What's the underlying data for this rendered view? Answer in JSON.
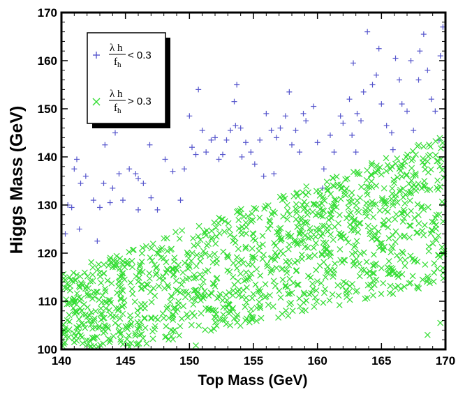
{
  "chart_data": {
    "type": "scatter",
    "title": "",
    "xlabel": "Top Mass (GeV)",
    "ylabel": "Higgs Mass (GeV)",
    "xlim": [
      140,
      170
    ],
    "ylim": [
      100,
      170
    ],
    "xticks": [
      "140",
      "145",
      "150",
      "155",
      "160",
      "165",
      "170"
    ],
    "yticks": [
      "100",
      "110",
      "120",
      "130",
      "140",
      "150",
      "160",
      "170"
    ],
    "grid": false,
    "legend_position": "top-left",
    "series": [
      {
        "name": "λ h / f_h < 0.3",
        "legend_numerator": "λ h",
        "legend_denominator": "f",
        "legend_subscript": "h",
        "legend_condition": "< 0.3",
        "marker": "plus",
        "color": "#5555cc",
        "points": [
          [
            140.3,
            124.0
          ],
          [
            140.5,
            130.0
          ],
          [
            140.8,
            129.5
          ],
          [
            141.0,
            137.5
          ],
          [
            141.2,
            139.5
          ],
          [
            141.5,
            134.5
          ],
          [
            141.4,
            125.0
          ],
          [
            141.9,
            136.0
          ],
          [
            142.5,
            131.0
          ],
          [
            142.8,
            122.5
          ],
          [
            143.4,
            142.5
          ],
          [
            143.3,
            134.5
          ],
          [
            143.0,
            129.5
          ],
          [
            144.0,
            133.5
          ],
          [
            144.2,
            145.0
          ],
          [
            144.5,
            136.5
          ],
          [
            144.8,
            131.0
          ],
          [
            145.2,
            147.5
          ],
          [
            145.3,
            137.5
          ],
          [
            145.8,
            136.5
          ],
          [
            146.0,
            135.5
          ],
          [
            146.4,
            134.5
          ],
          [
            146.0,
            129.0
          ],
          [
            147.0,
            131.5
          ],
          [
            147.5,
            129.0
          ],
          [
            148.1,
            139.5
          ],
          [
            148.7,
            137.0
          ],
          [
            149.3,
            131.0
          ],
          [
            149.6,
            137.5
          ],
          [
            150.0,
            148.5
          ],
          [
            150.2,
            142.0
          ],
          [
            150.5,
            140.5
          ],
          [
            150.7,
            154.0
          ],
          [
            151.0,
            145.5
          ],
          [
            151.3,
            141.0
          ],
          [
            151.7,
            143.5
          ],
          [
            152.0,
            144.0
          ],
          [
            152.3,
            139.5
          ],
          [
            152.6,
            140.5
          ],
          [
            152.9,
            143.5
          ],
          [
            153.2,
            145.5
          ],
          [
            153.5,
            151.5
          ],
          [
            153.7,
            155.0
          ],
          [
            154.0,
            146.0
          ],
          [
            154.1,
            140.0
          ],
          [
            154.4,
            143.0
          ],
          [
            154.8,
            141.0
          ],
          [
            155.1,
            138.5
          ],
          [
            155.5,
            143.5
          ],
          [
            155.8,
            136.0
          ],
          [
            156.0,
            149.0
          ],
          [
            156.4,
            145.5
          ],
          [
            156.8,
            144.0
          ],
          [
            157.1,
            146.0
          ],
          [
            157.5,
            148.5
          ],
          [
            157.8,
            153.5
          ],
          [
            158.0,
            142.5
          ],
          [
            158.3,
            145.5
          ],
          [
            158.6,
            141.0
          ],
          [
            159.1,
            147.5
          ],
          [
            159.7,
            150.5
          ],
          [
            160.0,
            143.0
          ],
          [
            160.5,
            137.5
          ],
          [
            161.0,
            144.5
          ],
          [
            161.3,
            141.0
          ],
          [
            161.8,
            148.5
          ],
          [
            162.0,
            147.0
          ],
          [
            162.5,
            152.0
          ],
          [
            162.7,
            144.5
          ],
          [
            163.1,
            149.0
          ],
          [
            163.4,
            147.5
          ],
          [
            163.9,
            166.0
          ],
          [
            163.6,
            153.5
          ],
          [
            164.3,
            155.0
          ],
          [
            164.6,
            157.0
          ],
          [
            165.0,
            151.0
          ],
          [
            165.4,
            146.5
          ],
          [
            165.8,
            145.0
          ],
          [
            166.1,
            160.5
          ],
          [
            166.6,
            151.0
          ],
          [
            167.0,
            149.5
          ],
          [
            167.3,
            160.0
          ],
          [
            167.9,
            156.0
          ],
          [
            168.3,
            165.5
          ],
          [
            168.6,
            158.0
          ],
          [
            168.9,
            152.0
          ],
          [
            169.2,
            149.5
          ],
          [
            169.6,
            161.0
          ],
          [
            169.9,
            153.5
          ],
          [
            169.8,
            167.0
          ],
          [
            164.8,
            162.5
          ],
          [
            166.4,
            156.0
          ],
          [
            168.0,
            162.0
          ],
          [
            162.8,
            159.5
          ],
          [
            158.9,
            149.0
          ],
          [
            146.9,
            142.5
          ],
          [
            153.6,
            146.5
          ],
          [
            156.6,
            136.5
          ],
          [
            160.4,
            133.5
          ],
          [
            143.8,
            130.5
          ],
          [
            163.0,
            141.0
          ],
          [
            165.9,
            141.5
          ],
          [
            167.5,
            145.5
          ],
          [
            169.5,
            143.5
          ]
        ]
      },
      {
        "name": "λ h / f_h > 0.3",
        "legend_numerator": "λ h",
        "legend_denominator": "f",
        "legend_subscript": "h",
        "legend_condition": "> 0.3",
        "marker": "cross",
        "color": "#33dd33",
        "points": []
      }
    ]
  }
}
